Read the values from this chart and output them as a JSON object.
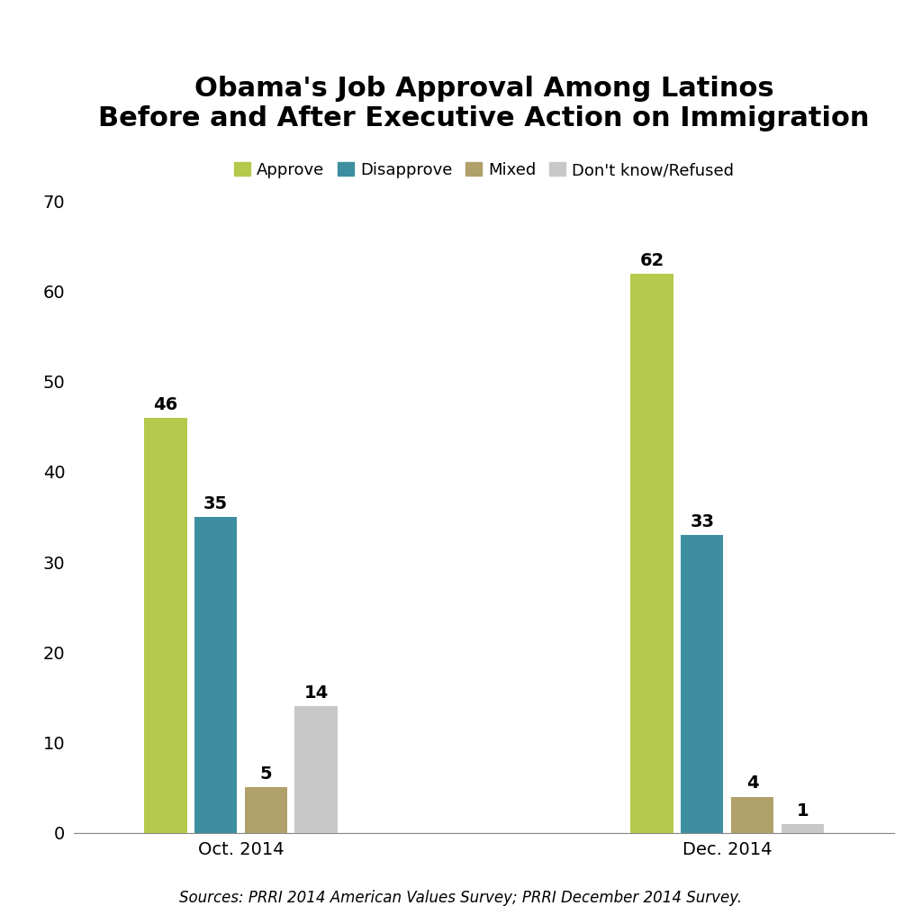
{
  "title": "Obama's Job Approval Among Latinos\nBefore and After Executive Action on Immigration",
  "groups": [
    "Oct. 2014",
    "Dec. 2014"
  ],
  "categories": [
    "Approve",
    "Disapprove",
    "Mixed",
    "Don't know/Refused"
  ],
  "values": {
    "Oct. 2014": [
      46,
      35,
      5,
      14
    ],
    "Dec. 2014": [
      62,
      33,
      4,
      1
    ]
  },
  "colors": [
    "#b5c94c",
    "#3d8fa0",
    "#b0a06a",
    "#c8c8c8"
  ],
  "ylim": [
    0,
    70
  ],
  "yticks": [
    0,
    10,
    20,
    30,
    40,
    50,
    60,
    70
  ],
  "bar_width": 0.14,
  "source_text": "Sources: PRRI 2014 American Values Survey; PRRI December 2014 Survey.",
  "title_fontsize": 22,
  "tick_fontsize": 14,
  "legend_fontsize": 13,
  "value_fontsize": 14,
  "source_fontsize": 12,
  "background_color": "#ffffff",
  "group_centers": [
    1.0,
    2.6
  ]
}
